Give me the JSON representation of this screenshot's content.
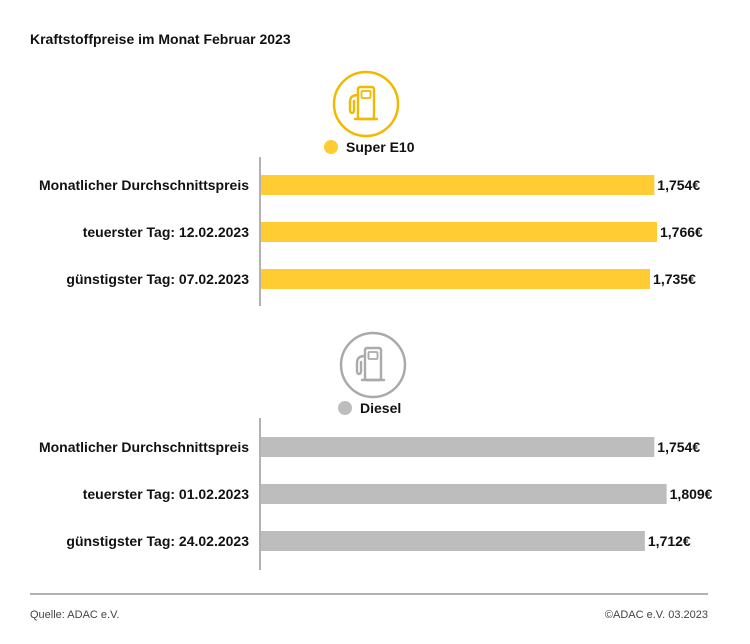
{
  "chart_data": {
    "type": "bar",
    "orientation": "horizontal",
    "title": "Kraftstoffpreise im Monat Februar 2023",
    "value_suffix": "€",
    "decimal_separator": ",",
    "xlim": [
      0,
      1.85
    ],
    "grid": false,
    "panels": [
      {
        "name": "Super E10",
        "icon": "fuel-pump-icon",
        "color": "#ffcc33",
        "icon_color": "#f3b800",
        "categories": [
          "Monatlicher Durchschnittspreis",
          "teuerster Tag: 12.02.2023",
          "günstigster Tag: 07.02.2023"
        ],
        "values": [
          1.754,
          1.766,
          1.735
        ],
        "value_labels": [
          "1,754€",
          "1,766€",
          "1,735€"
        ]
      },
      {
        "name": "Diesel",
        "icon": "fuel-pump-icon",
        "color": "#bdbdbd",
        "icon_color": "#aaaaaa",
        "categories": [
          "Monatlicher Durchschnittspreis",
          "teuerster Tag: 01.02.2023",
          "günstigster Tag: 24.02.2023"
        ],
        "values": [
          1.754,
          1.809,
          1.712
        ],
        "value_labels": [
          "1,754€",
          "1,809€",
          "1,712€"
        ]
      }
    ]
  },
  "footer": {
    "source": "Quelle: ADAC e.V.",
    "copyright": "©ADAC e.V. 03.2023"
  },
  "colors": {
    "divider": "#9a9a9a",
    "axis": "#888888"
  }
}
